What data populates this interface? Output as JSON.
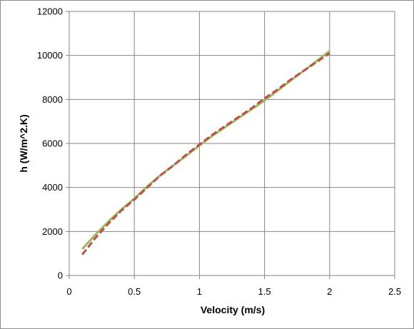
{
  "chart_data": {
    "type": "line",
    "xlabel": "Velocity (m/s)",
    "ylabel": "h (W/m^2.K)",
    "xlim": [
      0,
      2.5
    ],
    "ylim": [
      0,
      12000
    ],
    "xticks": [
      "0",
      "0.5",
      "1",
      "1.5",
      "2",
      "2.5"
    ],
    "yticks": [
      "0",
      "2000",
      "4000",
      "6000",
      "8000",
      "10000",
      "12000"
    ],
    "grid": true,
    "legend": "none",
    "series": [
      {
        "style": "solid",
        "color": "#9BBB59",
        "x": [
          0.1,
          0.2,
          0.3,
          0.4,
          0.5,
          0.6,
          0.7,
          0.8,
          0.9,
          1.0,
          1.1,
          1.2,
          1.3,
          1.4,
          1.5,
          1.6,
          1.7,
          1.8,
          1.9,
          2.0
        ],
        "y": [
          1200,
          1850,
          2450,
          3000,
          3500,
          4050,
          4550,
          5000,
          5450,
          5900,
          6350,
          6750,
          7150,
          7550,
          7950,
          8400,
          8850,
          9300,
          9750,
          10200
        ]
      },
      {
        "style": "dashed",
        "color": "#C0504D",
        "x": [
          0.1,
          0.2,
          0.3,
          0.4,
          0.5,
          0.6,
          0.7,
          0.8,
          0.9,
          1.0,
          1.1,
          1.2,
          1.3,
          1.4,
          1.5,
          1.6,
          1.7,
          1.8,
          1.9,
          2.0
        ],
        "y": [
          950,
          1700,
          2350,
          2950,
          3450,
          4000,
          4550,
          5000,
          5500,
          5950,
          6400,
          6800,
          7200,
          7600,
          8050,
          8450,
          8900,
          9300,
          9700,
          10100
        ]
      }
    ]
  }
}
